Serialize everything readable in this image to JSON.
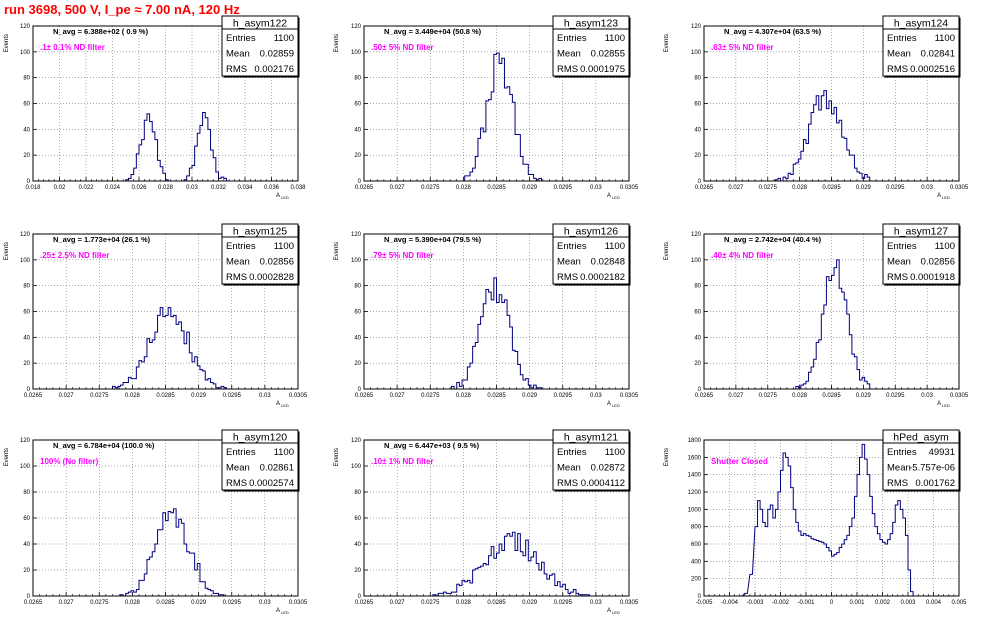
{
  "page": {
    "run_title": "run 3698,   500 V, I_pe ≈ 7.00 nA, 120 Hz"
  },
  "colors": {
    "histogram": "#000080",
    "annotation": "#ff00ff",
    "title": "#ff0000",
    "grid": "#555555",
    "axis": "#000000"
  },
  "chart_data": [
    {
      "type": "histogram",
      "hist_name": "h_asym122",
      "stats": [
        {
          "label": "Entries",
          "value": "1100"
        },
        {
          "label": "Mean",
          "value": "0.02859"
        },
        {
          "label": "RMS",
          "value": "0.002176"
        }
      ],
      "navg": "N_avg = 6.388e+02 ( 0.9 %)",
      "note": ".1± 0.1% ND filter",
      "ylabel": "Events",
      "xlabel": "A",
      "xlabel_sub": "LED",
      "xlim": [
        0.018,
        0.038
      ],
      "ylim": [
        0,
        120
      ],
      "xticks": [
        0.018,
        0.02,
        0.022,
        0.024,
        0.026,
        0.028,
        0.03,
        0.032,
        0.034,
        0.036,
        0.038
      ],
      "xtick_labels": [
        "0.018",
        "0.02",
        "0.022",
        "0.024",
        "0.026",
        "0.028",
        "0.03",
        "0.032",
        "0.034",
        "0.036",
        "0.038"
      ],
      "yticks": [
        0,
        20,
        40,
        60,
        80,
        100,
        120
      ],
      "ytick_labels": [
        "0",
        "20",
        "40",
        "60",
        "80",
        "100",
        "120"
      ],
      "grid": true,
      "peaks": [
        {
          "center": 0.0267,
          "sigma": 0.00055,
          "height": 50
        },
        {
          "center": 0.0309,
          "sigma": 0.00055,
          "height": 47
        }
      ],
      "bins": 100,
      "seed": 11
    },
    {
      "type": "histogram",
      "hist_name": "h_asym123",
      "stats": [
        {
          "label": "Entries",
          "value": "1100"
        },
        {
          "label": "Mean",
          "value": "0.02855"
        },
        {
          "label": "RMS",
          "value": "0.0001975"
        }
      ],
      "navg": "N_avg = 3.449e+04 (50.8 %)",
      "note": ".50± 5% ND filter",
      "ylabel": "Events",
      "xlabel": "A",
      "xlabel_sub": "LED",
      "xlim": [
        0.0265,
        0.0305
      ],
      "ylim": [
        0,
        120
      ],
      "xticks": [
        0.0265,
        0.027,
        0.0275,
        0.028,
        0.0285,
        0.029,
        0.0295,
        0.03,
        0.0305
      ],
      "xtick_labels": [
        "0.0265",
        "0.027",
        "0.0275",
        "0.028",
        "0.0285",
        "0.029",
        "0.0295",
        "0.03",
        "0.0305"
      ],
      "yticks": [
        0,
        20,
        40,
        60,
        80,
        100,
        120
      ],
      "ytick_labels": [
        "0",
        "20",
        "40",
        "60",
        "80",
        "100",
        "120"
      ],
      "grid": true,
      "peaks": [
        {
          "center": 0.02855,
          "sigma": 0.0001975,
          "height": 92
        }
      ],
      "bins": 100,
      "seed": 23
    },
    {
      "type": "histogram",
      "hist_name": "h_asym124",
      "stats": [
        {
          "label": "Entries",
          "value": "1100"
        },
        {
          "label": "Mean",
          "value": "0.02841"
        },
        {
          "label": "RMS",
          "value": "0.0002516"
        }
      ],
      "navg": "N_avg = 4.307e+04 (63.5 %)",
      "note": ".63± 5% ND filter",
      "ylabel": "Events",
      "xlabel": "A",
      "xlabel_sub": "LED",
      "xlim": [
        0.0265,
        0.0305
      ],
      "ylim": [
        0,
        120
      ],
      "xticks": [
        0.0265,
        0.027,
        0.0275,
        0.028,
        0.0285,
        0.029,
        0.0295,
        0.03,
        0.0305
      ],
      "xtick_labels": [
        "0.0265",
        "0.027",
        "0.0275",
        "0.028",
        "0.0285",
        "0.029",
        "0.0295",
        "0.03",
        "0.0305"
      ],
      "yticks": [
        0,
        20,
        40,
        60,
        80,
        100,
        120
      ],
      "ytick_labels": [
        "0",
        "20",
        "40",
        "60",
        "80",
        "100",
        "120"
      ],
      "grid": true,
      "peaks": [
        {
          "center": 0.02841,
          "sigma": 0.0002516,
          "height": 65
        }
      ],
      "bins": 100,
      "seed": 37
    },
    {
      "type": "histogram",
      "hist_name": "h_asym125",
      "stats": [
        {
          "label": "Entries",
          "value": "1100"
        },
        {
          "label": "Mean",
          "value": "0.02856"
        },
        {
          "label": "RMS",
          "value": "0.0002828"
        }
      ],
      "navg": "N_avg = 1.773e+04 (26.1 %)",
      "note": ".25± 2.5% ND filter",
      "ylabel": "Events",
      "xlabel": "A",
      "xlabel_sub": "LED",
      "xlim": [
        0.0265,
        0.0305
      ],
      "ylim": [
        0,
        120
      ],
      "xticks": [
        0.0265,
        0.027,
        0.0275,
        0.028,
        0.0285,
        0.029,
        0.0295,
        0.03,
        0.0305
      ],
      "xtick_labels": [
        "0.0265",
        "0.027",
        "0.0275",
        "0.028",
        "0.0285",
        "0.029",
        "0.0295",
        "0.03",
        "0.0305"
      ],
      "yticks": [
        0,
        20,
        40,
        60,
        80,
        100,
        120
      ],
      "ytick_labels": [
        "0",
        "20",
        "40",
        "60",
        "80",
        "100",
        "120"
      ],
      "grid": true,
      "peaks": [
        {
          "center": 0.02856,
          "sigma": 0.0002828,
          "height": 62
        }
      ],
      "bins": 100,
      "seed": 41
    },
    {
      "type": "histogram",
      "hist_name": "h_asym126",
      "stats": [
        {
          "label": "Entries",
          "value": "1100"
        },
        {
          "label": "Mean",
          "value": "0.02848"
        },
        {
          "label": "RMS",
          "value": "0.0002182"
        }
      ],
      "navg": "N_avg = 5.390e+04 (79.5 %)",
      "note": ".79± 5% ND filter",
      "ylabel": "Events",
      "xlabel": "A",
      "xlabel_sub": "LED",
      "xlim": [
        0.0265,
        0.0305
      ],
      "ylim": [
        0,
        120
      ],
      "xticks": [
        0.0265,
        0.027,
        0.0275,
        0.028,
        0.0285,
        0.029,
        0.0295,
        0.03,
        0.0305
      ],
      "xtick_labels": [
        "0.0265",
        "0.027",
        "0.0275",
        "0.028",
        "0.0285",
        "0.029",
        "0.0295",
        "0.03",
        "0.0305"
      ],
      "yticks": [
        0,
        20,
        40,
        60,
        80,
        100,
        120
      ],
      "ytick_labels": [
        "0",
        "20",
        "40",
        "60",
        "80",
        "100",
        "120"
      ],
      "grid": true,
      "peaks": [
        {
          "center": 0.02848,
          "sigma": 0.0002182,
          "height": 78
        }
      ],
      "bins": 100,
      "seed": 53
    },
    {
      "type": "histogram",
      "hist_name": "h_asym127",
      "stats": [
        {
          "label": "Entries",
          "value": "1100"
        },
        {
          "label": "Mean",
          "value": "0.02856"
        },
        {
          "label": "RMS",
          "value": "0.0001918"
        }
      ],
      "navg": "N_avg = 2.742e+04 (40.4 %)",
      "note": ".40± 4% ND filter",
      "ylabel": "Events",
      "xlabel": "A",
      "xlabel_sub": "LED",
      "xlim": [
        0.0265,
        0.0305
      ],
      "ylim": [
        0,
        120
      ],
      "xticks": [
        0.0265,
        0.027,
        0.0275,
        0.028,
        0.0285,
        0.029,
        0.0295,
        0.03,
        0.0305
      ],
      "xtick_labels": [
        "0.0265",
        "0.027",
        "0.0275",
        "0.028",
        "0.0285",
        "0.029",
        "0.0295",
        "0.03",
        "0.0305"
      ],
      "yticks": [
        0,
        20,
        40,
        60,
        80,
        100,
        120
      ],
      "ytick_labels": [
        "0",
        "20",
        "40",
        "60",
        "80",
        "100",
        "120"
      ],
      "grid": true,
      "peaks": [
        {
          "center": 0.02856,
          "sigma": 0.0001918,
          "height": 97
        }
      ],
      "bins": 100,
      "seed": 67
    },
    {
      "type": "histogram",
      "hist_name": "h_asym120",
      "stats": [
        {
          "label": "Entries",
          "value": "1100"
        },
        {
          "label": "Mean",
          "value": "0.02861"
        },
        {
          "label": "RMS",
          "value": "0.0002574"
        }
      ],
      "navg": "N_avg = 6.784e+04 (100.0 %)",
      "note": "100% (No filter)",
      "ylabel": "Events",
      "xlabel": "A",
      "xlabel_sub": "LED",
      "xlim": [
        0.0265,
        0.0305
      ],
      "ylim": [
        0,
        120
      ],
      "xticks": [
        0.0265,
        0.027,
        0.0275,
        0.028,
        0.0285,
        0.029,
        0.0295,
        0.03,
        0.0305
      ],
      "xtick_labels": [
        "0.0265",
        "0.027",
        "0.0275",
        "0.028",
        "0.0285",
        "0.029",
        "0.0295",
        "0.03",
        "0.0305"
      ],
      "yticks": [
        0,
        20,
        40,
        60,
        80,
        100,
        120
      ],
      "ytick_labels": [
        "0",
        "20",
        "40",
        "60",
        "80",
        "100",
        "120"
      ],
      "grid": true,
      "peaks": [
        {
          "center": 0.02861,
          "sigma": 0.0002574,
          "height": 63
        }
      ],
      "bins": 100,
      "seed": 71
    },
    {
      "type": "histogram",
      "hist_name": "h_asym121",
      "stats": [
        {
          "label": "Entries",
          "value": "1100"
        },
        {
          "label": "Mean",
          "value": "0.02872"
        },
        {
          "label": "RMS",
          "value": "0.0004112"
        }
      ],
      "navg": "N_avg = 6.447e+03 ( 9.5 %)",
      "note": ".10± 1% ND filter",
      "ylabel": "Events",
      "xlabel": "A",
      "xlabel_sub": "LED",
      "xlim": [
        0.0265,
        0.0305
      ],
      "ylim": [
        0,
        120
      ],
      "xticks": [
        0.0265,
        0.027,
        0.0275,
        0.028,
        0.0285,
        0.029,
        0.0295,
        0.03,
        0.0305
      ],
      "xtick_labels": [
        "0.0265",
        "0.027",
        "0.0275",
        "0.028",
        "0.0285",
        "0.029",
        "0.0295",
        "0.03",
        "0.0305"
      ],
      "yticks": [
        0,
        20,
        40,
        60,
        80,
        100,
        120
      ],
      "ytick_labels": [
        "0",
        "20",
        "40",
        "60",
        "80",
        "100",
        "120"
      ],
      "grid": true,
      "peaks": [
        {
          "center": 0.02872,
          "sigma": 0.0004112,
          "height": 42
        }
      ],
      "bins": 100,
      "seed": 83
    },
    {
      "type": "histogram",
      "hist_name": "hPed_asym",
      "stats": [
        {
          "label": "Entries",
          "value": "49931"
        },
        {
          "label": "Mean",
          "value": "-5.757e-06"
        },
        {
          "label": "RMS",
          "value": "0.001762"
        }
      ],
      "navg": "",
      "note": "Shutter Closed",
      "ylabel": "Events",
      "xlabel": "",
      "xlabel_sub": "",
      "xlim": [
        -0.005,
        0.005
      ],
      "ylim": [
        0,
        1800
      ],
      "xticks": [
        -0.005,
        -0.004,
        -0.003,
        -0.002,
        -0.001,
        0,
        0.001,
        0.002,
        0.003,
        0.004,
        0.005
      ],
      "xtick_labels": [
        "-0.005",
        "-0.004",
        "-0.003",
        "-0.002",
        "-0.001",
        "0",
        "0.001",
        "0.002",
        "0.003",
        "0.004",
        "0.005"
      ],
      "yticks": [
        0,
        200,
        400,
        600,
        800,
        1000,
        1200,
        1400,
        1600,
        1800
      ],
      "ytick_labels": [
        "0",
        "200",
        "400",
        "600",
        "800",
        "1000",
        "1200",
        "1400",
        "1600",
        "1800"
      ],
      "grid": true,
      "ped_bins": [
        [
          -0.0036,
          0
        ],
        [
          -0.0034,
          30
        ],
        [
          -0.0032,
          250
        ],
        [
          -0.003,
          800
        ],
        [
          -0.0029,
          1100
        ],
        [
          -0.0028,
          1000
        ],
        [
          -0.0027,
          850
        ],
        [
          -0.0026,
          800
        ],
        [
          -0.0025,
          1000
        ],
        [
          -0.0024,
          1050
        ],
        [
          -0.0023,
          900
        ],
        [
          -0.0022,
          1000
        ],
        [
          -0.0021,
          1200
        ],
        [
          -0.002,
          1450
        ],
        [
          -0.0019,
          1650
        ],
        [
          -0.0018,
          1600
        ],
        [
          -0.0017,
          1500
        ],
        [
          -0.0016,
          1250
        ],
        [
          -0.0015,
          1000
        ],
        [
          -0.0014,
          850
        ],
        [
          -0.0013,
          750
        ],
        [
          -0.0012,
          700
        ],
        [
          -0.0011,
          720
        ],
        [
          -0.001,
          700
        ],
        [
          -0.0009,
          690
        ],
        [
          -0.0008,
          660
        ],
        [
          -0.0007,
          650
        ],
        [
          -0.0006,
          640
        ],
        [
          -0.0005,
          630
        ],
        [
          -0.0004,
          620
        ],
        [
          -0.0003,
          600
        ],
        [
          -0.0002,
          560
        ],
        [
          -0.0001,
          520
        ],
        [
          0.0,
          460
        ],
        [
          0.0001,
          480
        ],
        [
          0.0002,
          500
        ],
        [
          0.0003,
          560
        ],
        [
          0.0004,
          600
        ],
        [
          0.0005,
          650
        ],
        [
          0.0006,
          700
        ],
        [
          0.0007,
          800
        ],
        [
          0.0008,
          900
        ],
        [
          0.0009,
          1150
        ],
        [
          0.001,
          1400
        ],
        [
          0.0011,
          1600
        ],
        [
          0.0012,
          1750
        ],
        [
          0.0013,
          1580
        ],
        [
          0.0014,
          1400
        ],
        [
          0.0015,
          1150
        ],
        [
          0.0016,
          950
        ],
        [
          0.0017,
          800
        ],
        [
          0.0018,
          720
        ],
        [
          0.0019,
          650
        ],
        [
          0.002,
          620
        ],
        [
          0.0021,
          600
        ],
        [
          0.0022,
          650
        ],
        [
          0.0023,
          720
        ],
        [
          0.0024,
          850
        ],
        [
          0.0025,
          1050
        ],
        [
          0.0026,
          1100
        ],
        [
          0.0027,
          1000
        ],
        [
          0.0028,
          900
        ],
        [
          0.0029,
          700
        ],
        [
          0.003,
          300
        ],
        [
          0.0031,
          50
        ],
        [
          0.0032,
          0
        ]
      ]
    }
  ]
}
